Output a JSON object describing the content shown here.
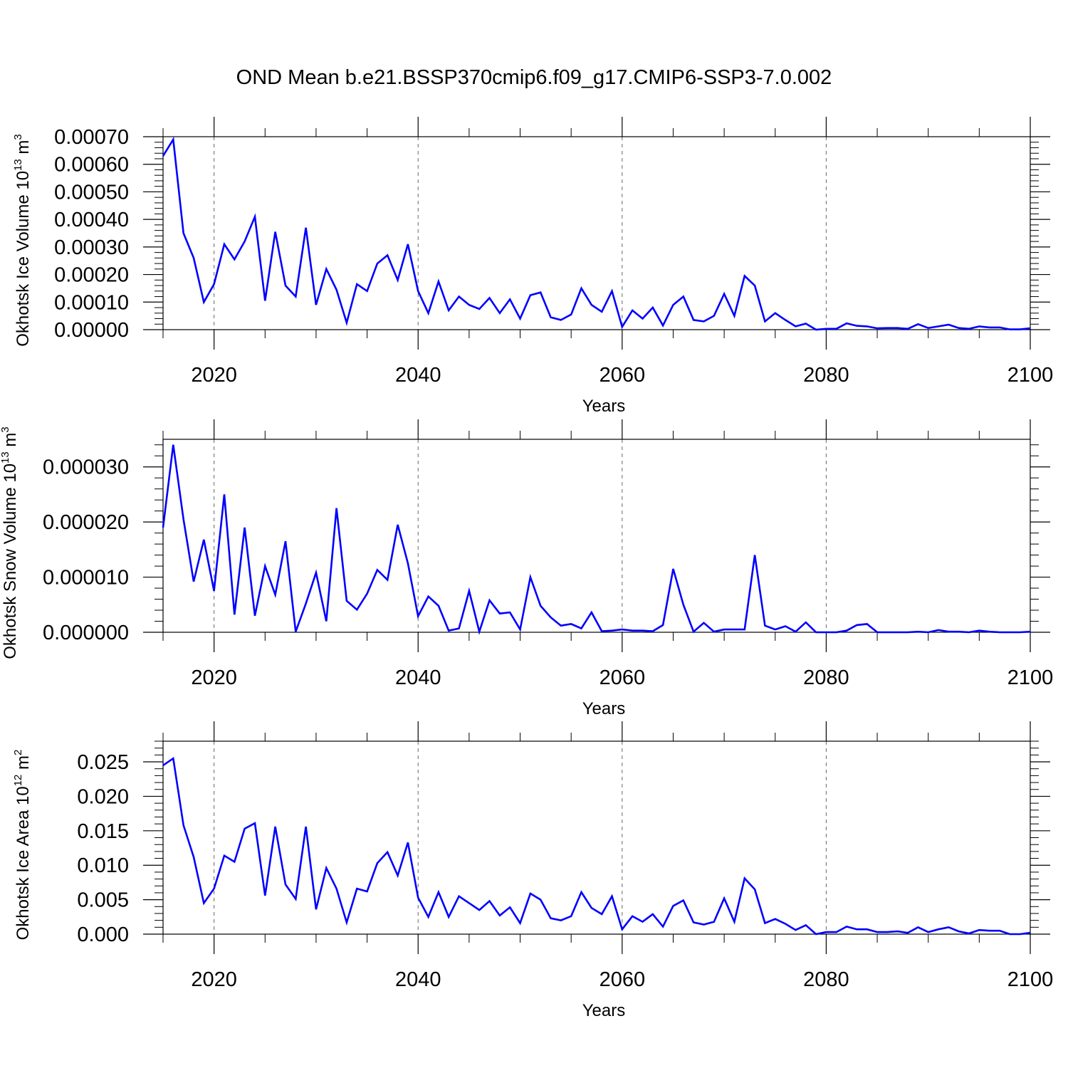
{
  "title": "OND Mean b.e21.BSSP370cmip6.f09_g17.CMIP6-SSP3-7.0.002",
  "line_color": "#0000ff",
  "chart_data": [
    {
      "type": "line",
      "xlabel": "Years",
      "ylabel": {
        "text": "Okhotsk Ice Volume 10",
        "exp": "13",
        "unit": " m",
        "unit_exp": "3"
      },
      "xlim": [
        2015,
        2100
      ],
      "ylim": [
        0,
        0.0007
      ],
      "grid": "dashed vertical lines at major x ticks",
      "xticks": [
        2020,
        2040,
        2060,
        2080,
        2100
      ],
      "xtick_labels": [
        "2020",
        "2040",
        "2060",
        "2080",
        "2100"
      ],
      "yticks": [
        0,
        0.0001,
        0.0002,
        0.0003,
        0.0004,
        0.0005,
        0.0006,
        0.0007
      ],
      "ytick_labels": [
        "0.00000",
        "0.00010",
        "0.00020",
        "0.00030",
        "0.00040",
        "0.00050",
        "0.00060",
        "0.00070"
      ],
      "x_start": 2015,
      "values": [
        0.00063,
        0.00069,
        0.00035,
        0.00026,
        0.0001,
        0.000165,
        0.00031,
        0.000255,
        0.00032,
        0.00041,
        0.000105,
        0.000355,
        0.00016,
        0.00012,
        0.00037,
        9e-05,
        0.00022,
        0.000145,
        2.5e-05,
        0.000165,
        0.00014,
        0.00024,
        0.00027,
        0.00018,
        0.00031,
        0.00014,
        6e-05,
        0.000175,
        7e-05,
        0.00012,
        9e-05,
        7.5e-05,
        0.000115,
        6e-05,
        0.00011,
        4e-05,
        0.000125,
        0.000135,
        4.5e-05,
        3.5e-05,
        5.5e-05,
        0.00015,
        9e-05,
        6.5e-05,
        0.00014,
        1e-05,
        7e-05,
        4e-05,
        8e-05,
        1.5e-05,
        9e-05,
        0.00012,
        3.5e-05,
        3e-05,
        5e-05,
        0.00013,
        5e-05,
        0.000195,
        0.00016,
        3e-05,
        6e-05,
        3.5e-05,
        1.2e-05,
        2.2e-05,
        0.0,
        3e-06,
        3e-06,
        2.3e-05,
        1.4e-05,
        1.2e-05,
        5e-06,
        6e-06,
        6e-06,
        3e-06,
        2e-05,
        6e-06,
        1.2e-05,
        1.8e-05,
        6e-06,
        3e-06,
        1.2e-05,
        8e-06,
        8e-06,
        1e-06,
        1e-06,
        5e-06
      ]
    },
    {
      "type": "line",
      "xlabel": "Years",
      "ylabel": {
        "text": "Okhotsk Snow Volume 10",
        "exp": "13",
        "unit": " m",
        "unit_exp": "3"
      },
      "xlim": [
        2015,
        2100
      ],
      "ylim": [
        0,
        3.5e-05
      ],
      "grid": "dashed vertical lines at major x ticks",
      "xticks": [
        2020,
        2040,
        2060,
        2080,
        2100
      ],
      "xtick_labels": [
        "2020",
        "2040",
        "2060",
        "2080",
        "2100"
      ],
      "yticks": [
        0,
        1e-05,
        2e-05,
        3e-05
      ],
      "ytick_labels": [
        "0.000000",
        "0.000010",
        "0.000020",
        "0.000030"
      ],
      "x_start": 2015,
      "values": [
        1.9e-05,
        3.4e-05,
        2.05e-05,
        9.2e-06,
        1.68e-05,
        7.5e-06,
        2.5e-05,
        3.2e-06,
        1.9e-05,
        3e-06,
        1.2e-05,
        6.8e-06,
        1.65e-05,
        1e-07,
        5.2e-06,
        1.08e-05,
        2e-06,
        2.25e-05,
        5.7e-06,
        4.1e-06,
        7e-06,
        1.13e-05,
        9.5e-06,
        1.95e-05,
        1.25e-05,
        2.9e-06,
        6.5e-06,
        4.8e-06,
        3e-07,
        7e-07,
        7.5e-06,
        1e-07,
        5.8e-06,
        3.4e-06,
        3.6e-06,
        5e-07,
        1e-05,
        4.8e-06,
        2.7e-06,
        1.2e-06,
        1.5e-06,
        7e-07,
        3.6e-06,
        2e-07,
        3e-07,
        5e-07,
        3e-07,
        3e-07,
        2e-07,
        1.3e-06,
        1.15e-05,
        5e-06,
        1e-07,
        1.7e-06,
        1e-07,
        5e-07,
        5e-07,
        5e-07,
        1.4e-05,
        1.2e-06,
        5e-07,
        1.1e-06,
        1e-07,
        1.8e-06,
        0.0,
        0.0,
        0.0,
        3e-07,
        1.3e-06,
        1.5e-06,
        0.0,
        0.0,
        0.0,
        0.0,
        1e-07,
        0.0,
        4e-07,
        1e-07,
        1e-07,
        0.0,
        3e-07,
        1e-07,
        0.0,
        0.0,
        0.0,
        1e-07
      ]
    },
    {
      "type": "line",
      "xlabel": "Years",
      "ylabel": {
        "text": "Okhotsk Ice Area 10",
        "exp": "12",
        "unit": " m",
        "unit_exp": "2"
      },
      "xlim": [
        2015,
        2100
      ],
      "ylim": [
        0,
        0.028
      ],
      "grid": "dashed vertical lines at major x ticks",
      "xticks": [
        2020,
        2040,
        2060,
        2080,
        2100
      ],
      "xtick_labels": [
        "2020",
        "2040",
        "2060",
        "2080",
        "2100"
      ],
      "yticks": [
        0,
        0.005,
        0.01,
        0.015,
        0.02,
        0.025
      ],
      "ytick_labels": [
        "0.000",
        "0.005",
        "0.010",
        "0.015",
        "0.020",
        "0.025"
      ],
      "x_start": 2015,
      "values": [
        0.0245,
        0.0255,
        0.0158,
        0.0112,
        0.0045,
        0.0066,
        0.0114,
        0.0105,
        0.0153,
        0.0161,
        0.0056,
        0.0156,
        0.0072,
        0.0051,
        0.0156,
        0.0036,
        0.0096,
        0.0066,
        0.0017,
        0.0066,
        0.0062,
        0.0103,
        0.0119,
        0.0085,
        0.0133,
        0.0053,
        0.0025,
        0.0061,
        0.0025,
        0.0055,
        0.0045,
        0.0035,
        0.0048,
        0.0027,
        0.0039,
        0.0016,
        0.0059,
        0.005,
        0.0023,
        0.002,
        0.0026,
        0.0061,
        0.0038,
        0.0029,
        0.0055,
        0.0007,
        0.0026,
        0.0018,
        0.0029,
        0.0011,
        0.0041,
        0.0049,
        0.0017,
        0.0014,
        0.0018,
        0.0052,
        0.0018,
        0.0081,
        0.0065,
        0.0016,
        0.0022,
        0.0015,
        0.0006,
        0.0013,
        0.0,
        0.0003,
        0.0003,
        0.0011,
        0.0007,
        0.0007,
        0.0003,
        0.0003,
        0.0004,
        0.0002,
        0.001,
        0.0003,
        0.0007,
        0.001,
        0.0004,
        0.0001,
        0.0006,
        0.0005,
        0.0005,
        0.0,
        0.0,
        0.0002
      ]
    }
  ]
}
